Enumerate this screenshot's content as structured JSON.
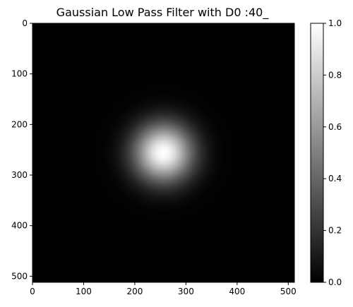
{
  "chart_data": {
    "type": "heatmap",
    "title": "Gaussian Low Pass Filter with D0 :40_",
    "image": {
      "width": 512,
      "height": 512,
      "center": [
        256,
        256
      ],
      "d0": 40,
      "function": "exp(-D^2 / (2*D0^2))",
      "colormap": "gray"
    },
    "x_axis": {
      "range": [
        0,
        512
      ],
      "ticks": [
        0,
        100,
        200,
        300,
        400,
        500
      ]
    },
    "y_axis": {
      "range": [
        0,
        512
      ],
      "ticks": [
        0,
        100,
        200,
        300,
        400,
        500
      ],
      "inverted": true
    },
    "colorbar": {
      "range": [
        0.0,
        1.0
      ],
      "ticks": [
        0.0,
        0.2,
        0.4,
        0.6,
        0.8,
        1.0
      ],
      "tick_labels": [
        "0.0",
        "0.2",
        "0.4",
        "0.6",
        "0.8",
        "1.0"
      ]
    },
    "grid": false
  }
}
